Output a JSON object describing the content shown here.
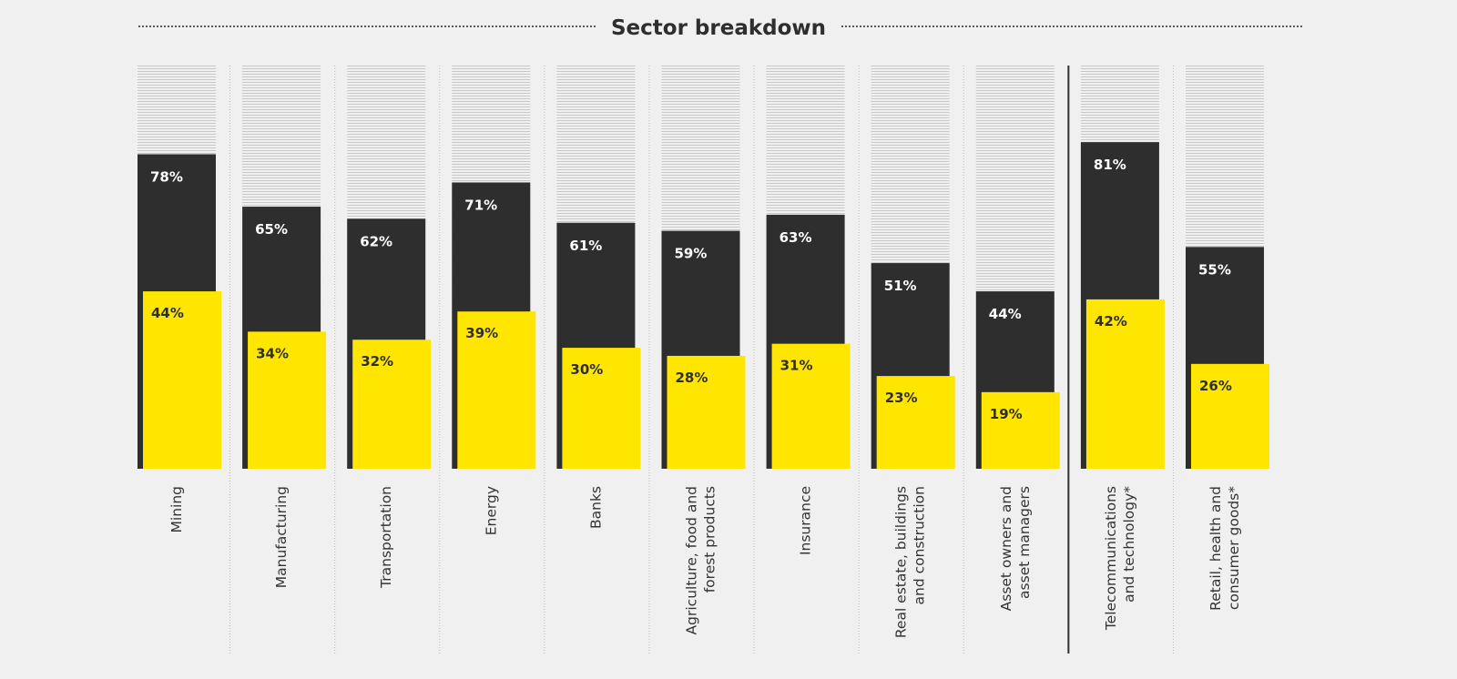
{
  "chart_data": {
    "type": "bar",
    "title": "Sector breakdown",
    "categories": [
      [
        "Mining"
      ],
      [
        "Manufacturing"
      ],
      [
        "Transportation"
      ],
      [
        "Energy"
      ],
      [
        "Banks"
      ],
      [
        "Agriculture, food and",
        "forest products"
      ],
      [
        "Insurance"
      ],
      [
        "Real estate, buildings",
        "and construction"
      ],
      [
        "Asset owners and",
        "asset managers"
      ],
      [
        "Telecommunications",
        "and technology*"
      ],
      [
        "Retail, health and",
        "consumer goods*"
      ]
    ],
    "series": [
      {
        "values": [
          78,
          65,
          62,
          71,
          61,
          59,
          63,
          51,
          44,
          81,
          55
        ],
        "labels": [
          "78%",
          "65%",
          "62%",
          "71%",
          "61%",
          "59%",
          "63%",
          "51%",
          "44%",
          "81%",
          "55%"
        ],
        "color": "#2e2e2e"
      },
      {
        "values": [
          44,
          34,
          32,
          39,
          30,
          28,
          31,
          23,
          19,
          42,
          26
        ],
        "labels": [
          "44%",
          "34%",
          "32%",
          "39%",
          "30%",
          "28%",
          "31%",
          "23%",
          "19%",
          "42%",
          "26%"
        ],
        "color": "#ffe600"
      }
    ],
    "ylim": [
      0,
      100
    ],
    "grid": false,
    "legend": "none",
    "separator_after_category": 9
  },
  "colors": {
    "background": "#f0f0f0",
    "dark_bar": "#2e2e2e",
    "yellow_bar": "#ffe600",
    "track_stripe": "#c8c8c8",
    "divider": "#bdbdbd",
    "title_text": "#2e2e2e"
  }
}
